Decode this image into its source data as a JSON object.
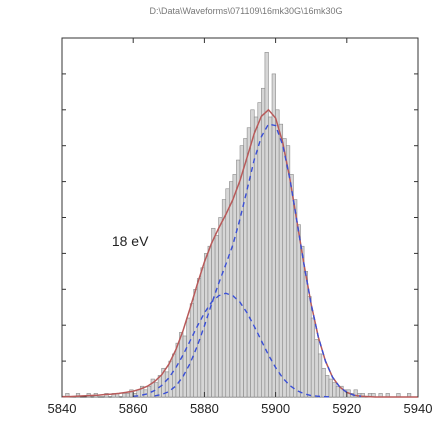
{
  "chart_data": {
    "type": "bar",
    "title": "D:\\Data\\Waveforms\\071109\\16mk30G\\16mk30G",
    "xlabel": "",
    "ylabel": "",
    "xlim": [
      5840,
      5940
    ],
    "ylim": [
      0,
      100
    ],
    "xticks": [
      5840,
      5860,
      5880,
      5900,
      5920,
      5940
    ],
    "grid": false,
    "legend": "none",
    "annotations": [
      {
        "text": "18 eV",
        "x": 5854,
        "y": 42
      }
    ],
    "histogram": {
      "name": "",
      "bin_width": 1,
      "x": [
        5840,
        5841,
        5842,
        5843,
        5844,
        5845,
        5846,
        5847,
        5848,
        5849,
        5850,
        5851,
        5852,
        5853,
        5854,
        5855,
        5856,
        5857,
        5858,
        5859,
        5860,
        5861,
        5862,
        5863,
        5864,
        5865,
        5866,
        5867,
        5868,
        5869,
        5870,
        5871,
        5872,
        5873,
        5874,
        5875,
        5876,
        5877,
        5878,
        5879,
        5880,
        5881,
        5882,
        5883,
        5884,
        5885,
        5886,
        5887,
        5888,
        5889,
        5890,
        5891,
        5892,
        5893,
        5894,
        5895,
        5896,
        5897,
        5898,
        5899,
        5900,
        5901,
        5902,
        5903,
        5904,
        5905,
        5906,
        5907,
        5908,
        5909,
        5910,
        5911,
        5912,
        5913,
        5914,
        5915,
        5916,
        5917,
        5918,
        5919,
        5920,
        5921,
        5922,
        5923,
        5924,
        5925,
        5926,
        5927,
        5928,
        5929,
        5930,
        5931,
        5932,
        5933,
        5934,
        5935,
        5936,
        5937,
        5938,
        5939
      ],
      "counts": [
        0,
        1,
        0,
        0,
        1,
        0,
        0,
        1,
        0,
        1,
        0,
        0,
        1,
        0,
        1,
        1,
        0,
        1,
        1,
        2,
        1,
        2,
        3,
        2,
        3,
        5,
        4,
        6,
        8,
        7,
        10,
        12,
        15,
        18,
        17,
        22,
        26,
        30,
        33,
        36,
        40,
        42,
        47,
        45,
        50,
        55,
        58,
        60,
        62,
        66,
        70,
        72,
        75,
        80,
        78,
        82,
        86,
        96,
        78,
        90,
        80,
        76,
        72,
        70,
        62,
        55,
        48,
        42,
        35,
        28,
        22,
        16,
        12,
        8,
        6,
        5,
        4,
        3,
        3,
        2,
        2,
        1,
        2,
        1,
        1,
        0,
        1,
        1,
        0,
        1,
        0,
        1,
        0,
        0,
        1,
        0,
        0,
        1,
        0,
        0
      ]
    },
    "series": [
      {
        "name": "",
        "style": "solid",
        "color": "#b85a5a",
        "x": [
          5840,
          5842,
          5844,
          5846,
          5848,
          5850,
          5852,
          5854,
          5856,
          5858,
          5860,
          5862,
          5864,
          5866,
          5868,
          5870,
          5872,
          5874,
          5876,
          5878,
          5880,
          5882,
          5884,
          5886,
          5888,
          5890,
          5892,
          5894,
          5896,
          5898,
          5900,
          5902,
          5904,
          5906,
          5908,
          5910,
          5912,
          5914,
          5916,
          5918,
          5920,
          5922,
          5924,
          5926,
          5928,
          5930,
          5932,
          5934,
          5936,
          5938,
          5940
        ],
        "y": [
          0.1,
          0.1,
          0.2,
          0.3,
          0.4,
          0.5,
          0.7,
          0.8,
          1.0,
          1.3,
          1.6,
          2.2,
          3.0,
          4.3,
          6.2,
          9.1,
          13.2,
          18.5,
          24.8,
          31.4,
          37.6,
          42.8,
          47.0,
          50.8,
          55.0,
          60.3,
          66.8,
          73.4,
          78.2,
          80.0,
          77.7,
          70.9,
          60.8,
          48.9,
          36.8,
          25.8,
          16.7,
          10.0,
          5.5,
          2.8,
          1.3,
          0.5,
          0.2,
          0.1,
          0.0,
          0.0,
          0.0,
          0.0,
          0.0,
          0.0,
          0.0
        ]
      },
      {
        "name": "",
        "style": "dashed",
        "color": "#3a4fd6",
        "x": [
          5860,
          5862,
          5864,
          5866,
          5868,
          5870,
          5872,
          5874,
          5876,
          5878,
          5880,
          5882,
          5884,
          5886,
          5888,
          5890,
          5892,
          5894,
          5896,
          5898,
          5900,
          5902,
          5904,
          5906,
          5908,
          5910,
          5912,
          5914,
          5916
        ],
        "y": [
          0.2,
          0.4,
          0.9,
          1.8,
          3.2,
          5.3,
          8.2,
          11.7,
          15.7,
          19.7,
          23.4,
          26.4,
          28.2,
          28.9,
          28.2,
          26.4,
          23.4,
          19.7,
          15.7,
          11.7,
          8.2,
          5.3,
          3.2,
          1.8,
          0.9,
          0.4,
          0.2,
          0.1,
          0.0
        ]
      },
      {
        "name": "",
        "style": "dashed",
        "color": "#3a4fd6",
        "x": [
          5866,
          5868,
          5870,
          5872,
          5874,
          5876,
          5878,
          5880,
          5882,
          5884,
          5886,
          5888,
          5890,
          5892,
          5894,
          5896,
          5898,
          5900,
          5902,
          5904,
          5906,
          5908,
          5910,
          5912,
          5914,
          5916,
          5918,
          5920,
          5922,
          5924
        ],
        "y": [
          0.3,
          0.7,
          1.5,
          3.1,
          5.7,
          9.4,
          14.2,
          19.8,
          25.9,
          31.6,
          36.9,
          42.4,
          49.6,
          57.8,
          66.1,
          72.5,
          76.0,
          75.6,
          70.2,
          60.8,
          48.9,
          36.8,
          25.8,
          16.7,
          10.0,
          5.5,
          2.8,
          1.3,
          0.5,
          0.2
        ]
      }
    ]
  }
}
